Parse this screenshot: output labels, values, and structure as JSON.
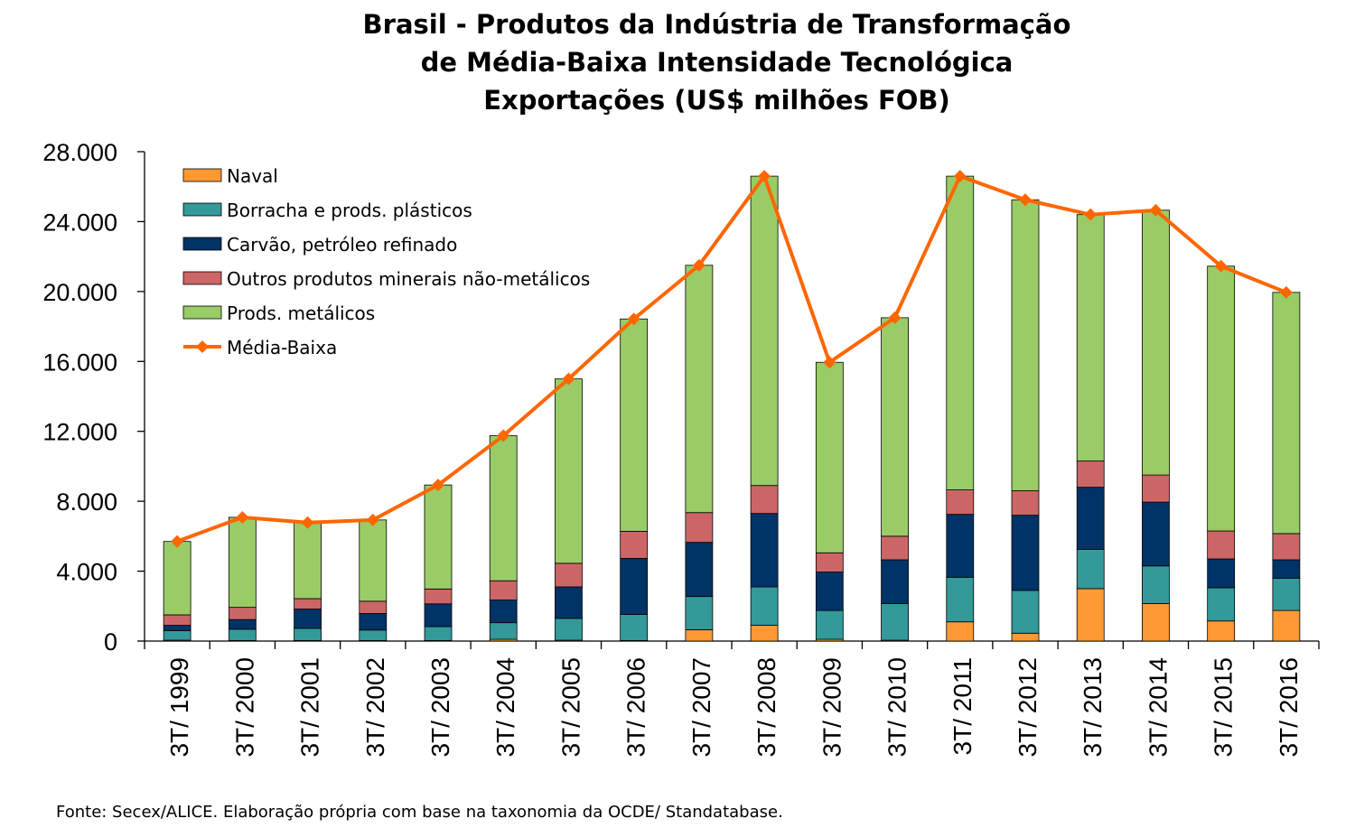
{
  "title_lines": [
    "Brasil - Produtos da Indústria de Transformação",
    "de Média-Baixa Intensidade Tecnológica",
    "Exportações (US$ milhões FOB)"
  ],
  "source": "Fonte: Secex/ALICE. Elaboração própria com base na taxonomia da OCDE/ Standatabase.",
  "chart_data": {
    "type": "bar",
    "stacked": true,
    "categories": [
      "3T/ 1999",
      "3T/ 2000",
      "3T/ 2001",
      "3T/ 2002",
      "3T/ 2003",
      "3T/ 2004",
      "3T/ 2005",
      "3T/ 2006",
      "3T/ 2007",
      "3T/ 2008",
      "3T/ 2009",
      "3T/ 2010",
      "3T/ 2011",
      "3T/ 2012",
      "3T/ 2013",
      "3T/ 2014",
      "3T/ 2015",
      "3T/ 2016"
    ],
    "ylim": [
      0,
      28000
    ],
    "yticks": [
      0,
      4000,
      8000,
      12000,
      16000,
      20000,
      24000,
      28000
    ],
    "ytick_labels": [
      "0",
      "4.000",
      "8.000",
      "12.000",
      "16.000",
      "20.000",
      "24.000",
      "28.000"
    ],
    "legend_position": "top-left",
    "series": [
      {
        "name": "Naval",
        "color": "#ff9933",
        "values": [
          50,
          30,
          30,
          30,
          30,
          100,
          50,
          30,
          650,
          900,
          100,
          50,
          1100,
          450,
          3000,
          2150,
          1150,
          1750
        ]
      },
      {
        "name": "Borracha e prods. plásticos",
        "color": "#339999",
        "values": [
          550,
          650,
          700,
          600,
          800,
          950,
          1250,
          1500,
          1900,
          2200,
          1650,
          2100,
          2550,
          2450,
          2250,
          2150,
          1900,
          1850
        ]
      },
      {
        "name": "Carvão, petróleo refinado",
        "color": "#003366",
        "values": [
          300,
          550,
          1100,
          950,
          1300,
          1300,
          1800,
          3200,
          3100,
          4200,
          2200,
          2500,
          3600,
          4300,
          3550,
          3650,
          1650,
          1050
        ]
      },
      {
        "name": "Outros produtos minerais não-metálicos",
        "color": "#cc6666",
        "values": [
          600,
          700,
          600,
          700,
          850,
          1100,
          1350,
          1550,
          1700,
          1600,
          1100,
          1350,
          1400,
          1400,
          1500,
          1550,
          1600,
          1500
        ]
      },
      {
        "name": "Prods. metálicos",
        "color": "#99cc66",
        "values": [
          4200,
          5150,
          4350,
          4650,
          5950,
          8300,
          10550,
          12150,
          14150,
          17700,
          10900,
          12500,
          17950,
          16650,
          14100,
          15150,
          15150,
          13800
        ]
      }
    ],
    "line": {
      "name": "Média-Baixa",
      "color": "#ff6600",
      "values": [
        5700,
        7080,
        6780,
        6930,
        8930,
        11750,
        15000,
        18430,
        21500,
        26600,
        15950,
        18500,
        26600,
        25250,
        24400,
        24650,
        21450,
        19950
      ]
    }
  }
}
